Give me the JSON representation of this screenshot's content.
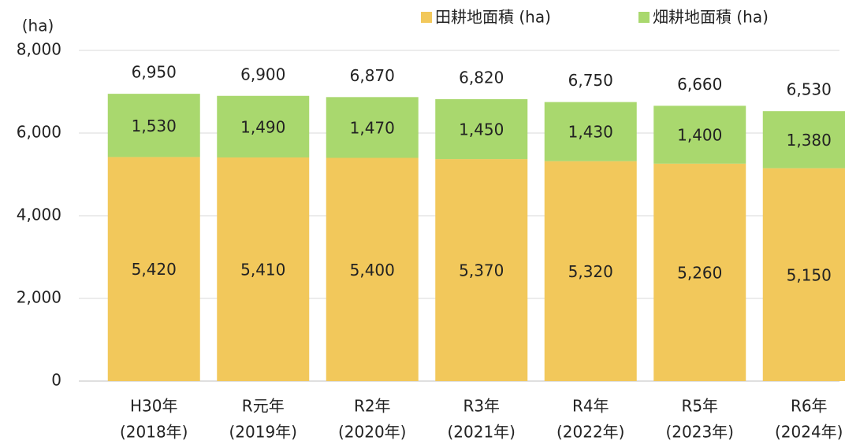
{
  "chart_data": {
    "type": "stacked_bar",
    "y_unit": "(ha)",
    "categories": [
      [
        "H30年",
        "(2018年)"
      ],
      [
        "R元年",
        "(2019年)"
      ],
      [
        "R2年",
        "(2020年)"
      ],
      [
        "R3年",
        "(2021年)"
      ],
      [
        "R4年",
        "(2022年)"
      ],
      [
        "R5年",
        "(2023年)"
      ],
      [
        "R6年",
        "(2024年)"
      ]
    ],
    "series": [
      {
        "name": "田耕地面積 (ha)",
        "color": "#f2c85b",
        "values": [
          5420,
          5410,
          5400,
          5370,
          5320,
          5260,
          5150
        ],
        "value_labels": [
          "5,420",
          "5,410",
          "5,400",
          "5,370",
          "5,320",
          "5,260",
          "5,150"
        ]
      },
      {
        "name": "畑耕地面積 (ha)",
        "color": "#a9d86e",
        "values": [
          1530,
          1490,
          1470,
          1450,
          1430,
          1400,
          1380
        ],
        "value_labels": [
          "1,530",
          "1,490",
          "1,470",
          "1,450",
          "1,430",
          "1,400",
          "1,380"
        ]
      }
    ],
    "totals": [
      6950,
      6900,
      6870,
      6820,
      6750,
      6660,
      6530
    ],
    "total_labels": [
      "6,950",
      "6,900",
      "6,870",
      "6,820",
      "6,750",
      "6,660",
      "6,530"
    ],
    "ylim": [
      0,
      8000
    ],
    "yticks": [
      0,
      {
        "value": 2000,
        "label": "2,000"
      },
      {
        "value": 4000,
        "label": "4,000"
      },
      {
        "value": 6000,
        "label": "6,000"
      },
      {
        "value": 8000,
        "label": "8,000"
      }
    ],
    "grid": true,
    "legend": "top"
  }
}
